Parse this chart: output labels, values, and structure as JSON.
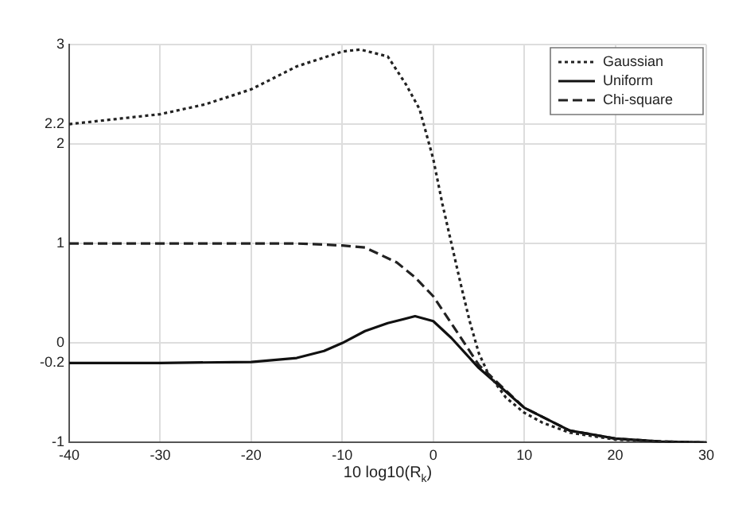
{
  "chart_data": {
    "type": "line",
    "xlabel": "10 log10(R$_{k}$)",
    "xlim": [
      -40,
      30
    ],
    "xticks": [
      -40,
      -30,
      -20,
      -10,
      0,
      10,
      20,
      30
    ],
    "ylim": [
      -1,
      3
    ],
    "yticks": [
      -1,
      -0.2,
      0,
      1,
      2,
      2.2,
      3
    ],
    "grid": true,
    "legend": "top right",
    "marker": "none",
    "series": [
      {
        "name": "Gaussian",
        "color": "#222222",
        "line_style": "dotted",
        "x": [
          -40,
          -35,
          -30,
          -25,
          -20,
          -15,
          -10,
          -8,
          -5,
          -3,
          -1.5,
          0,
          1,
          2,
          3,
          4,
          5,
          6,
          8,
          10,
          12,
          15,
          20,
          25,
          30
        ],
        "values": [
          2.2,
          2.25,
          2.3,
          2.4,
          2.55,
          2.78,
          2.93,
          2.95,
          2.88,
          2.6,
          2.35,
          1.85,
          1.4,
          1,
          0.6,
          0.22,
          -0.1,
          -0.3,
          -0.55,
          -0.7,
          -0.8,
          -0.9,
          -0.97,
          -0.99,
          -1
        ]
      },
      {
        "name": "Uniform",
        "color": "#111111",
        "line_style": "solid",
        "x": [
          -40,
          -30,
          -20,
          -15,
          -12,
          -10,
          -7.5,
          -5,
          -2,
          0,
          2,
          5,
          10,
          15,
          20,
          25,
          30
        ],
        "values": [
          -0.2,
          -0.2,
          -0.19,
          -0.15,
          -0.08,
          0,
          0.12,
          0.2,
          0.27,
          0.22,
          0.05,
          -0.25,
          -0.65,
          -0.88,
          -0.96,
          -0.99,
          -1
        ]
      },
      {
        "name": "Chi-square",
        "color": "#222222",
        "line_style": "dashed",
        "x": [
          -40,
          -30,
          -20,
          -15,
          -12,
          -10,
          -7.5,
          -4,
          -2,
          0,
          2.7,
          5,
          10,
          15,
          20,
          25,
          30
        ],
        "values": [
          1,
          1,
          1,
          1,
          0.99,
          0.98,
          0.96,
          0.81,
          0.66,
          0.47,
          0.1,
          -0.22,
          -0.65,
          -0.88,
          -0.96,
          -0.99,
          -1
        ]
      }
    ]
  }
}
